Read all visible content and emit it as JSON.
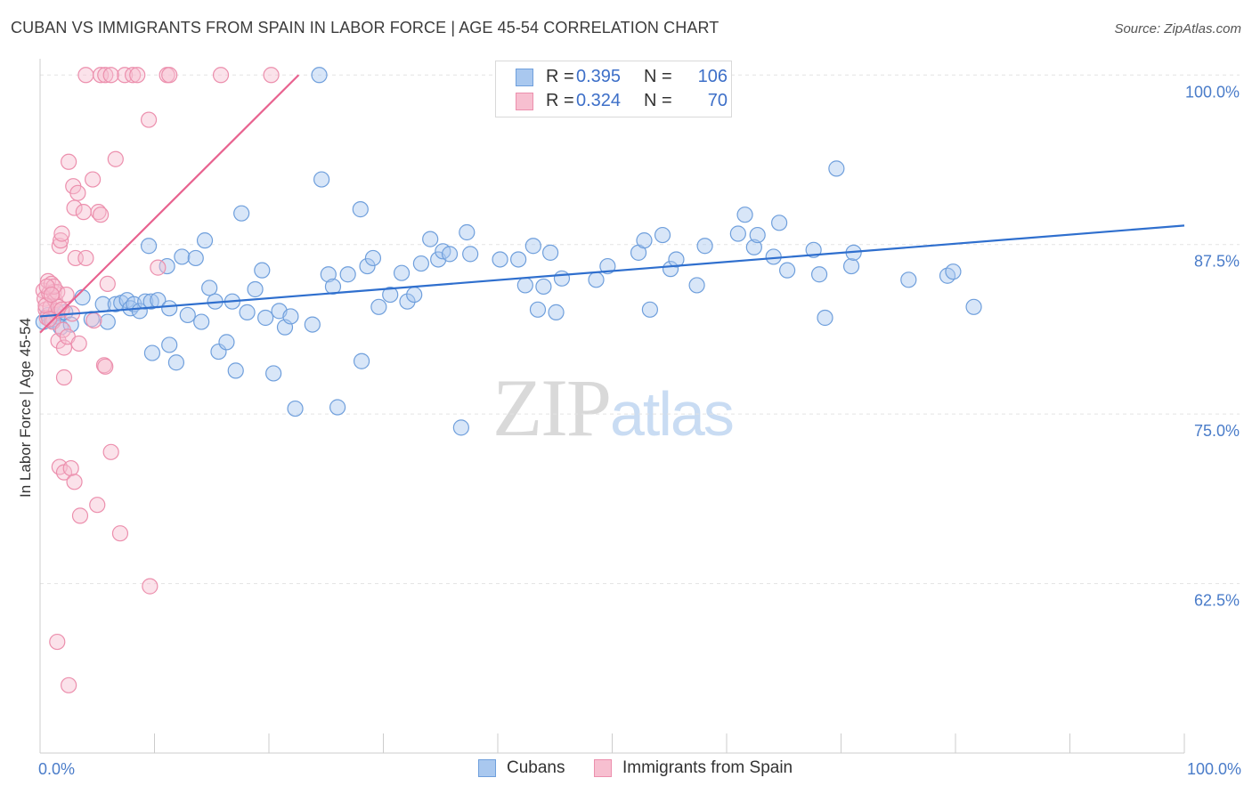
{
  "title": "CUBAN VS IMMIGRANTS FROM SPAIN IN LABOR FORCE | AGE 45-54 CORRELATION CHART",
  "source": "Source: ZipAtlas.com",
  "legend_top": {
    "rows": [
      {
        "r_label": "R =",
        "r_value": "0.395",
        "n_label": "N =",
        "n_value": "106"
      },
      {
        "r_label": "R =",
        "r_value": "0.324",
        "n_label": "N =",
        "n_value": "70"
      }
    ]
  },
  "legend_bottom": {
    "items": [
      {
        "label": "Cubans"
      },
      {
        "label": "Immigrants from Spain"
      }
    ]
  },
  "watermark": {
    "zip": "ZIP",
    "atlas": "atlas"
  },
  "colors": {
    "blue_fill": "#a9c8ef",
    "blue_stroke": "#6f9fdc",
    "blue_line": "#2f6fce",
    "pink_fill": "#f7bfd0",
    "pink_stroke": "#ec8fad",
    "pink_line": "#e8628f",
    "tick_text": "#4a7cc9",
    "grid": "#e3e3e3"
  },
  "chart_data": {
    "type": "scatter",
    "title": "CUBAN VS IMMIGRANTS FROM SPAIN IN LABOR FORCE | AGE 45-54 CORRELATION CHART",
    "xlabel": "",
    "ylabel": "In Labor Force | Age 45-54",
    "xlim": [
      0,
      100
    ],
    "ylim": [
      50,
      101.2
    ],
    "x_tick_labels": [
      "0.0%",
      "100.0%"
    ],
    "y_ticks": [
      62.5,
      75.0,
      87.5,
      100.0
    ],
    "y_tick_labels": [
      "62.5%",
      "75.0%",
      "87.5%",
      "100.0%"
    ],
    "grid": true,
    "legend_position": "top-center",
    "series": [
      {
        "name": "Cubans",
        "R": 0.395,
        "N": 106,
        "trend": {
          "x": [
            0,
            100
          ],
          "y": [
            82.2,
            88.9
          ]
        },
        "points": [
          [
            0.3,
            81.8
          ],
          [
            0.7,
            82.3
          ],
          [
            1.0,
            81.9
          ],
          [
            1.2,
            82.0
          ],
          [
            1.5,
            82.2
          ],
          [
            1.8,
            81.4
          ],
          [
            2.2,
            82.5
          ],
          [
            2.7,
            81.6
          ],
          [
            3.7,
            83.6
          ],
          [
            4.5,
            82.0
          ],
          [
            5.5,
            83.1
          ],
          [
            5.9,
            81.8
          ],
          [
            6.6,
            83.1
          ],
          [
            7.1,
            83.2
          ],
          [
            7.6,
            83.4
          ],
          [
            7.9,
            82.8
          ],
          [
            8.2,
            83.1
          ],
          [
            8.7,
            82.6
          ],
          [
            9.2,
            83.3
          ],
          [
            9.7,
            83.3
          ],
          [
            10.3,
            83.4
          ],
          [
            9.5,
            87.4
          ],
          [
            9.8,
            79.5
          ],
          [
            11.3,
            82.8
          ],
          [
            11.1,
            85.9
          ],
          [
            11.3,
            80.1
          ],
          [
            11.9,
            78.8
          ],
          [
            12.4,
            86.6
          ],
          [
            12.9,
            82.3
          ],
          [
            13.6,
            86.5
          ],
          [
            14.1,
            81.8
          ],
          [
            14.4,
            87.8
          ],
          [
            14.8,
            84.3
          ],
          [
            15.3,
            83.3
          ],
          [
            15.6,
            79.6
          ],
          [
            16.3,
            80.3
          ],
          [
            16.8,
            83.3
          ],
          [
            17.1,
            78.2
          ],
          [
            17.6,
            89.8
          ],
          [
            18.1,
            82.5
          ],
          [
            18.8,
            84.2
          ],
          [
            19.4,
            85.6
          ],
          [
            19.7,
            82.1
          ],
          [
            20.4,
            78.0
          ],
          [
            20.9,
            82.6
          ],
          [
            21.4,
            81.4
          ],
          [
            21.9,
            82.2
          ],
          [
            22.3,
            75.4
          ],
          [
            23.8,
            81.6
          ],
          [
            24.6,
            92.3
          ],
          [
            25.2,
            85.3
          ],
          [
            25.6,
            84.4
          ],
          [
            26.0,
            75.5
          ],
          [
            26.9,
            85.3
          ],
          [
            28.0,
            90.1
          ],
          [
            28.1,
            78.9
          ],
          [
            28.6,
            85.9
          ],
          [
            29.1,
            86.5
          ],
          [
            29.6,
            82.9
          ],
          [
            30.6,
            83.8
          ],
          [
            31.6,
            85.4
          ],
          [
            32.1,
            83.3
          ],
          [
            32.7,
            83.8
          ],
          [
            33.3,
            86.1
          ],
          [
            34.1,
            87.9
          ],
          [
            34.8,
            86.4
          ],
          [
            35.2,
            87.0
          ],
          [
            35.8,
            86.8
          ],
          [
            36.8,
            74.0
          ],
          [
            37.3,
            88.4
          ],
          [
            37.6,
            86.8
          ],
          [
            40.2,
            86.4
          ],
          [
            41.8,
            86.4
          ],
          [
            42.4,
            84.5
          ],
          [
            43.1,
            87.4
          ],
          [
            43.5,
            82.7
          ],
          [
            44.0,
            84.4
          ],
          [
            44.6,
            86.9
          ],
          [
            45.1,
            82.5
          ],
          [
            45.6,
            85.0
          ],
          [
            48.6,
            84.9
          ],
          [
            49.6,
            85.9
          ],
          [
            52.3,
            86.9
          ],
          [
            52.8,
            87.8
          ],
          [
            53.3,
            82.7
          ],
          [
            54.4,
            88.2
          ],
          [
            55.1,
            85.7
          ],
          [
            55.6,
            86.4
          ],
          [
            57.4,
            84.5
          ],
          [
            58.1,
            87.4
          ],
          [
            61.0,
            88.3
          ],
          [
            61.6,
            89.7
          ],
          [
            62.4,
            87.3
          ],
          [
            62.7,
            88.2
          ],
          [
            64.1,
            86.6
          ],
          [
            64.6,
            89.1
          ],
          [
            65.3,
            85.6
          ],
          [
            67.6,
            87.1
          ],
          [
            68.1,
            85.3
          ],
          [
            68.6,
            82.1
          ],
          [
            69.6,
            93.1
          ],
          [
            70.9,
            85.9
          ],
          [
            71.1,
            86.9
          ],
          [
            75.9,
            84.9
          ],
          [
            79.3,
            85.2
          ],
          [
            79.8,
            85.5
          ],
          [
            81.6,
            82.9
          ],
          [
            24.4,
            100.0
          ]
        ]
      },
      {
        "name": "Immigrants from Spain",
        "R": 0.324,
        "N": 70,
        "trend": {
          "x": [
            0,
            22.6
          ],
          "y": [
            81.0,
            100.0
          ]
        },
        "points": [
          [
            0.3,
            84.1
          ],
          [
            0.4,
            83.5
          ],
          [
            0.5,
            82.7
          ],
          [
            0.6,
            82.1
          ],
          [
            0.7,
            84.8
          ],
          [
            0.8,
            83.9
          ],
          [
            0.9,
            82.9
          ],
          [
            1.0,
            84.6
          ],
          [
            1.1,
            81.8
          ],
          [
            1.2,
            84.0
          ],
          [
            1.3,
            83.4
          ],
          [
            1.4,
            82.6
          ],
          [
            1.5,
            84.0
          ],
          [
            1.6,
            80.4
          ],
          [
            1.7,
            87.4
          ],
          [
            1.8,
            87.8
          ],
          [
            1.9,
            88.3
          ],
          [
            2.0,
            81.2
          ],
          [
            2.1,
            77.7
          ],
          [
            2.1,
            79.9
          ],
          [
            1.7,
            71.1
          ],
          [
            2.1,
            70.7
          ],
          [
            2.3,
            83.8
          ],
          [
            2.5,
            93.6
          ],
          [
            2.7,
            71.0
          ],
          [
            3.0,
            70.0
          ],
          [
            2.9,
            91.8
          ],
          [
            3.0,
            90.2
          ],
          [
            3.1,
            86.5
          ],
          [
            3.3,
            91.3
          ],
          [
            3.5,
            67.5
          ],
          [
            3.8,
            89.9
          ],
          [
            4.0,
            86.5
          ],
          [
            4.6,
            92.3
          ],
          [
            4.7,
            81.9
          ],
          [
            5.0,
            68.3
          ],
          [
            5.1,
            89.9
          ],
          [
            5.3,
            89.7
          ],
          [
            5.6,
            78.6
          ],
          [
            5.7,
            78.5
          ],
          [
            5.9,
            84.6
          ],
          [
            6.2,
            72.2
          ],
          [
            6.6,
            93.8
          ],
          [
            7.0,
            66.2
          ],
          [
            7.4,
            100.0
          ],
          [
            8.1,
            100.0
          ],
          [
            8.5,
            100.0
          ],
          [
            9.5,
            96.7
          ],
          [
            9.6,
            62.3
          ],
          [
            10.3,
            85.8
          ],
          [
            11.1,
            100.0
          ],
          [
            11.3,
            100.0
          ],
          [
            15.8,
            100.0
          ],
          [
            20.2,
            100.0
          ],
          [
            4.0,
            100.0
          ],
          [
            5.3,
            100.0
          ],
          [
            5.7,
            100.0
          ],
          [
            6.2,
            100.0
          ],
          [
            1.5,
            58.2
          ],
          [
            2.5,
            55.0
          ],
          [
            0.5,
            83.0
          ],
          [
            0.8,
            82.0
          ],
          [
            1.2,
            84.4
          ],
          [
            1.6,
            82.9
          ],
          [
            2.4,
            80.7
          ],
          [
            3.4,
            80.2
          ],
          [
            0.6,
            84.4
          ],
          [
            1.0,
            83.8
          ],
          [
            1.9,
            82.7
          ],
          [
            2.8,
            82.4
          ]
        ]
      }
    ]
  }
}
